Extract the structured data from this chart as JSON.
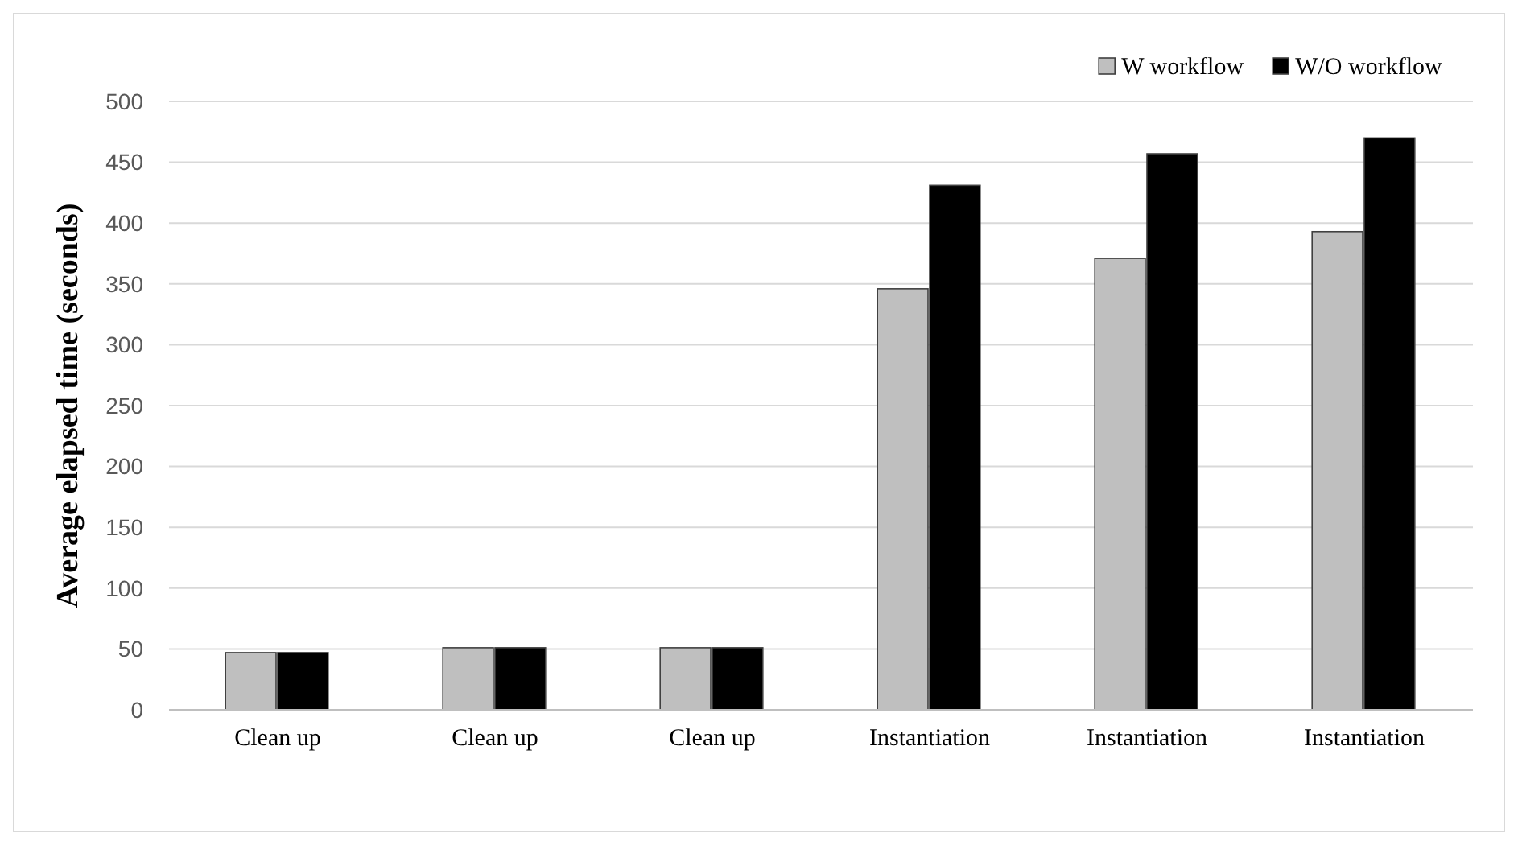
{
  "chart_data": {
    "type": "bar",
    "ylabel": "Average elapsed time (seconds)",
    "categories": [
      "Clean up",
      "Clean up",
      "Clean up",
      "Instantiation",
      "Instantiation",
      "Instantiation"
    ],
    "series": [
      {
        "name": "W workflow",
        "color": "#bfbfbf",
        "values": [
          47,
          51,
          51,
          346,
          371,
          393
        ]
      },
      {
        "name": "W/O workflow",
        "color": "#000000",
        "values": [
          47,
          51,
          51,
          431,
          457,
          470
        ]
      }
    ],
    "ylim": [
      0,
      500
    ],
    "yticks": [
      0,
      50,
      100,
      150,
      200,
      250,
      300,
      350,
      400,
      450,
      500
    ],
    "grid": "y",
    "legend": "top right"
  }
}
